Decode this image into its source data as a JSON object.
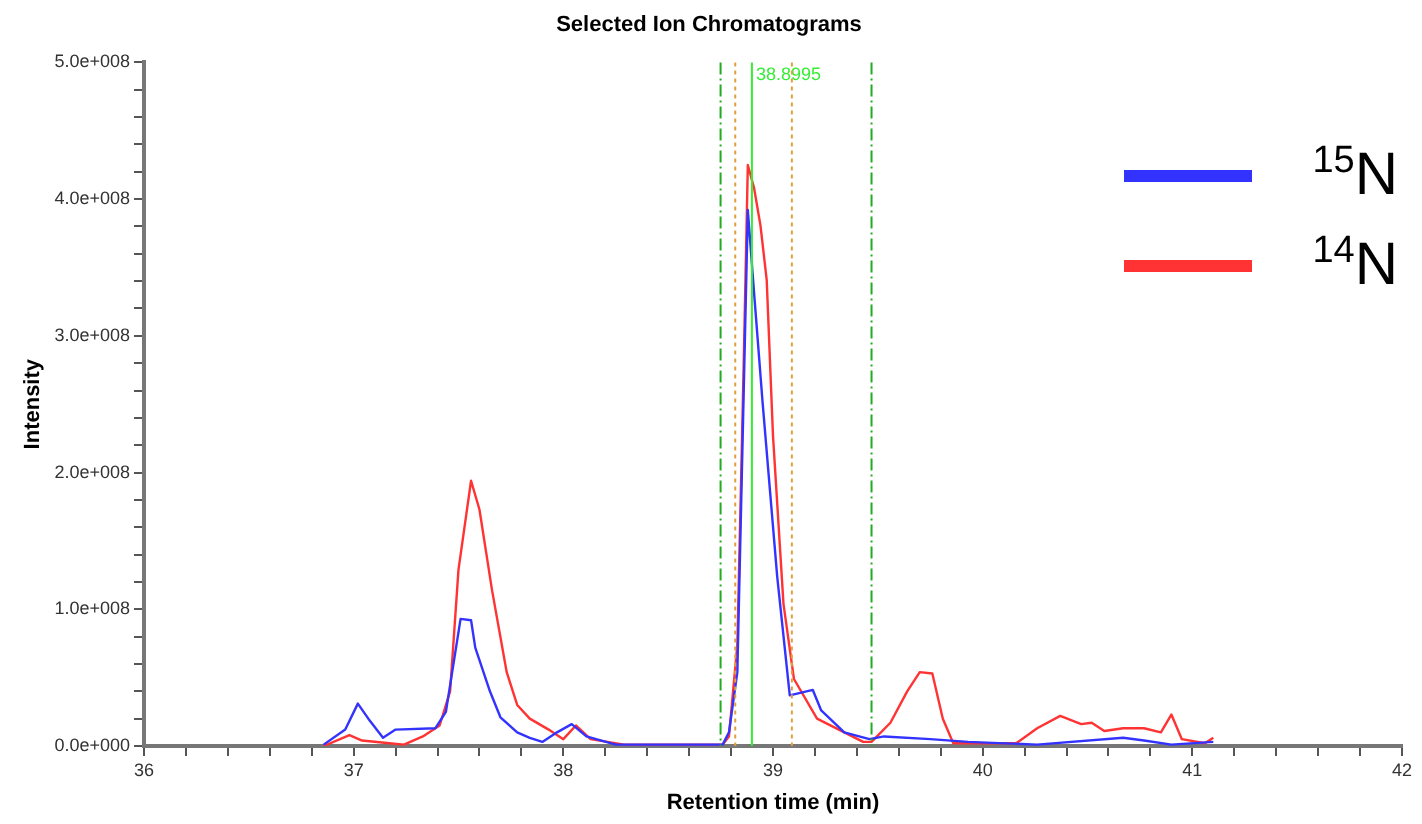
{
  "chart_data": {
    "type": "line",
    "title": "Selected Ion Chromatograms",
    "xlabel": "Retention time (min)",
    "ylabel": "Intensity",
    "xlim": [
      36,
      42
    ],
    "xticks": [
      36,
      {
        "value": 36.2,
        "label": null
      },
      {
        "value": 36.4,
        "label": null
      },
      {
        "value": 36.6,
        "label": null
      },
      {
        "value": 36.8,
        "label": null
      },
      37,
      {
        "value": 37.2,
        "label": null
      },
      {
        "value": 37.4,
        "label": null
      },
      {
        "value": 37.6,
        "label": null
      },
      {
        "value": 37.8,
        "label": null
      },
      38,
      {
        "value": 38.2,
        "label": null
      },
      {
        "value": 38.4,
        "label": null
      },
      {
        "value": 38.6,
        "label": null
      },
      {
        "value": 38.8,
        "label": null
      },
      39,
      {
        "value": 39.2,
        "label": null
      },
      {
        "value": 39.4,
        "label": null
      },
      {
        "value": 39.6,
        "label": null
      },
      {
        "value": 39.8,
        "label": null
      },
      40,
      {
        "value": 40.2,
        "label": null
      },
      {
        "value": 40.4,
        "label": null
      },
      {
        "value": 40.6,
        "label": null
      },
      {
        "value": 40.8,
        "label": null
      },
      41,
      {
        "value": 41.2,
        "label": null
      },
      {
        "value": 41.4,
        "label": null
      },
      {
        "value": 41.6,
        "label": null
      },
      {
        "value": 41.8,
        "label": null
      },
      42
    ],
    "ylim": [
      0,
      500000000
    ],
    "yticks": [
      {
        "value": 0,
        "label": "0.0e+000"
      },
      {
        "value": 20000000,
        "label": null
      },
      {
        "value": 40000000,
        "label": null
      },
      {
        "value": 60000000,
        "label": null
      },
      {
        "value": 80000000,
        "label": null
      },
      {
        "value": 100000000,
        "label": "1.0e+008"
      },
      {
        "value": 120000000,
        "label": null
      },
      {
        "value": 140000000,
        "label": null
      },
      {
        "value": 160000000,
        "label": null
      },
      {
        "value": 180000000,
        "label": null
      },
      {
        "value": 200000000,
        "label": "2.0e+008"
      },
      {
        "value": 220000000,
        "label": null
      },
      {
        "value": 240000000,
        "label": null
      },
      {
        "value": 260000000,
        "label": null
      },
      {
        "value": 280000000,
        "label": null
      },
      {
        "value": 300000000,
        "label": "3.0e+008"
      },
      {
        "value": 320000000,
        "label": null
      },
      {
        "value": 340000000,
        "label": null
      },
      {
        "value": 360000000,
        "label": null
      },
      {
        "value": 380000000,
        "label": null
      },
      {
        "value": 400000000,
        "label": "4.0e+008"
      },
      {
        "value": 420000000,
        "label": null
      },
      {
        "value": 440000000,
        "label": null
      },
      {
        "value": 460000000,
        "label": null
      },
      {
        "value": 480000000,
        "label": null
      },
      {
        "value": 500000000,
        "label": "5.0e+008"
      }
    ],
    "grid": false,
    "legend": "top right",
    "marker": "none",
    "line_style": "solid",
    "ref_lines": [
      {
        "axis": "x",
        "value": 38.75,
        "label": null,
        "color": "#22aa22",
        "line_style": "dashed"
      },
      {
        "axis": "x",
        "value": 38.82,
        "label": null,
        "color": "#e0a040",
        "line_style": "dotted"
      },
      {
        "axis": "x",
        "value": 38.8995,
        "label": "38.8995",
        "color": "#33ee33",
        "line_style": "solid"
      },
      {
        "axis": "x",
        "value": 39.09,
        "label": null,
        "color": "#e0a040",
        "line_style": "dotted"
      },
      {
        "axis": "x",
        "value": 39.47,
        "label": null,
        "color": "#22aa22",
        "line_style": "dashed"
      }
    ],
    "series": [
      {
        "name": "$^{15}$N",
        "color": "#3333ff",
        "x": [
          36.857,
          36.96,
          37.02,
          37.07,
          37.14,
          37.2,
          37.39,
          37.44,
          37.51,
          37.56,
          37.58,
          37.65,
          37.7,
          37.78,
          37.84,
          37.9,
          37.97,
          38.04,
          38.11,
          38.25,
          38.5,
          38.76,
          38.79,
          38.83,
          38.88,
          38.91,
          38.95,
          39.02,
          39.08,
          39.19,
          39.23,
          39.34,
          39.46,
          39.53,
          39.75,
          39.93,
          40.26,
          40.67,
          40.77,
          40.9,
          41.1
        ],
        "values": [
          1000000,
          12000000,
          31000000,
          20000000,
          6000000,
          12000000,
          13000000,
          25000000,
          93000000,
          92000000,
          72000000,
          40000000,
          21000000,
          10000000,
          6000000,
          3000000,
          10000000,
          16000000,
          7000000,
          1000000,
          1000000,
          1000000,
          10000000,
          54000000,
          392000000,
          331000000,
          252000000,
          124000000,
          37000000,
          41000000,
          26000000,
          10000000,
          5000000,
          7000000,
          5000000,
          3000000,
          1000000,
          6000000,
          4000000,
          1000000,
          3000000
        ]
      },
      {
        "name": "$^{14}$N",
        "color": "#ff3333",
        "x": [
          36.857,
          36.98,
          37.04,
          37.17,
          37.24,
          37.33,
          37.41,
          37.46,
          37.5,
          37.56,
          37.6,
          37.66,
          37.73,
          37.78,
          37.84,
          37.93,
          38.0,
          38.06,
          38.13,
          38.29,
          38.76,
          38.79,
          38.83,
          38.86,
          38.88,
          38.91,
          38.94,
          38.97,
          39.0,
          39.05,
          39.1,
          39.21,
          39.34,
          39.43,
          39.47,
          39.56,
          39.64,
          39.7,
          39.76,
          39.81,
          39.86,
          40.16,
          40.26,
          40.37,
          40.47,
          40.52,
          40.58,
          40.67,
          40.77,
          40.85,
          40.9,
          40.95,
          41.06,
          41.1
        ],
        "values": [
          0,
          8000000,
          4000000,
          2000000,
          1000000,
          7000000,
          15000000,
          40000000,
          129000000,
          194000000,
          173000000,
          114000000,
          54000000,
          30000000,
          20000000,
          12000000,
          5000000,
          15000000,
          5000000,
          1000000,
          1000000,
          7000000,
          74000000,
          277000000,
          425000000,
          408000000,
          381000000,
          341000000,
          227000000,
          104000000,
          49000000,
          20000000,
          10000000,
          3000000,
          3000000,
          17000000,
          40000000,
          54000000,
          53000000,
          20000000,
          2000000,
          2000000,
          13000000,
          22000000,
          16000000,
          17000000,
          11000000,
          13000000,
          13000000,
          10000000,
          23000000,
          5000000,
          2000000,
          6000000
        ]
      }
    ]
  }
}
